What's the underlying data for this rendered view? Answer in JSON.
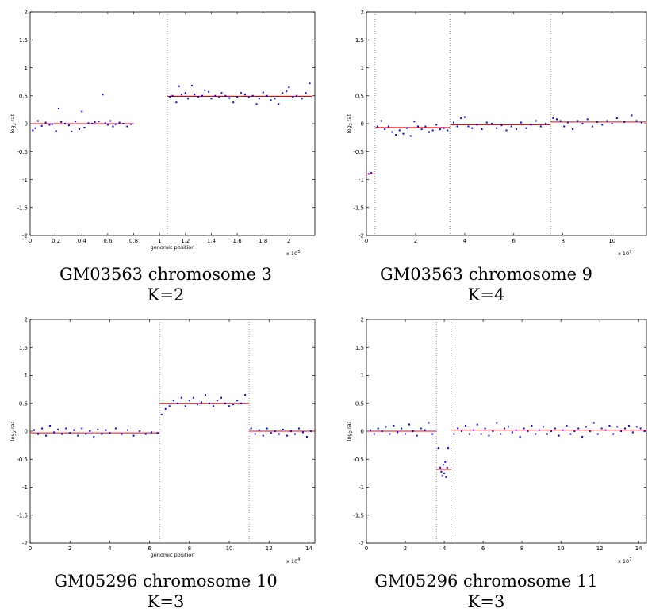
{
  "chart_data": [
    {
      "type": "scatter",
      "caption_title": "GM03563 chromosome 3",
      "caption_k": "K=2",
      "xlabel": "genomic position",
      "ylabel": "log",
      "ylabel_sub": "2",
      "ylabel_suffix": " rat",
      "x_unit_label": "x 10",
      "x_unit_exp": "5",
      "xlim": [
        0,
        2.2
      ],
      "ylim": [
        -2,
        2
      ],
      "xticks": [
        0,
        0.2,
        0.4,
        0.6,
        0.8,
        1,
        1.2,
        1.4,
        1.6,
        1.8,
        2
      ],
      "xtick_labels": [
        "0",
        "0.2",
        "0.4",
        "0.6",
        "0.8",
        "1",
        "1.2",
        "1.4",
        "1.6",
        "1.8",
        "2"
      ],
      "yticks": [
        -2,
        -1.5,
        -1,
        -0.5,
        0,
        0.5,
        1,
        1.5,
        2
      ],
      "ytick_labels": [
        "-2",
        "-1.5",
        "-1",
        "-0.5",
        "0",
        "0.5",
        "1",
        "1.5",
        "2"
      ],
      "breakpoints": [
        1.06
      ],
      "segments": [
        {
          "x": [
            0.01,
            0.8
          ],
          "y": 0.0
        },
        {
          "x": [
            1.06,
            2.18
          ],
          "y": 0.49
        }
      ],
      "points": [
        [
          0.02,
          -0.12
        ],
        [
          0.04,
          -0.08
        ],
        [
          0.06,
          0.05
        ],
        [
          0.09,
          -0.04
        ],
        [
          0.12,
          0.02
        ],
        [
          0.15,
          -0.02
        ],
        [
          0.17,
          -0.01
        ],
        [
          0.2,
          -0.13
        ],
        [
          0.22,
          0.27
        ],
        [
          0.24,
          0.03
        ],
        [
          0.27,
          0.0
        ],
        [
          0.3,
          -0.03
        ],
        [
          0.32,
          -0.14
        ],
        [
          0.35,
          0.04
        ],
        [
          0.38,
          -0.1
        ],
        [
          0.4,
          0.22
        ],
        [
          0.42,
          -0.07
        ],
        [
          0.45,
          0.01
        ],
        [
          0.48,
          0.0
        ],
        [
          0.5,
          0.03
        ],
        [
          0.53,
          0.04
        ],
        [
          0.56,
          0.52
        ],
        [
          0.58,
          0.01
        ],
        [
          0.6,
          -0.02
        ],
        [
          0.62,
          0.05
        ],
        [
          0.64,
          -0.05
        ],
        [
          0.66,
          -0.01
        ],
        [
          0.69,
          0.02
        ],
        [
          0.72,
          0.0
        ],
        [
          0.75,
          -0.05
        ],
        [
          0.78,
          -0.01
        ],
        [
          1.08,
          0.48
        ],
        [
          1.1,
          0.5
        ],
        [
          1.13,
          0.38
        ],
        [
          1.15,
          0.67
        ],
        [
          1.17,
          0.52
        ],
        [
          1.2,
          0.55
        ],
        [
          1.22,
          0.45
        ],
        [
          1.25,
          0.68
        ],
        [
          1.27,
          0.52
        ],
        [
          1.3,
          0.48
        ],
        [
          1.33,
          0.5
        ],
        [
          1.35,
          0.6
        ],
        [
          1.38,
          0.57
        ],
        [
          1.4,
          0.45
        ],
        [
          1.43,
          0.5
        ],
        [
          1.46,
          0.47
        ],
        [
          1.48,
          0.55
        ],
        [
          1.51,
          0.5
        ],
        [
          1.54,
          0.46
        ],
        [
          1.57,
          0.38
        ],
        [
          1.6,
          0.48
        ],
        [
          1.63,
          0.55
        ],
        [
          1.66,
          0.52
        ],
        [
          1.69,
          0.47
        ],
        [
          1.72,
          0.5
        ],
        [
          1.75,
          0.35
        ],
        [
          1.77,
          0.45
        ],
        [
          1.8,
          0.56
        ],
        [
          1.83,
          0.5
        ],
        [
          1.86,
          0.42
        ],
        [
          1.89,
          0.45
        ],
        [
          1.92,
          0.35
        ],
        [
          1.95,
          0.55
        ],
        [
          1.98,
          0.58
        ],
        [
          2.0,
          0.65
        ],
        [
          2.03,
          0.48
        ],
        [
          2.06,
          0.5
        ],
        [
          2.1,
          0.45
        ],
        [
          2.13,
          0.55
        ],
        [
          2.16,
          0.72
        ]
      ]
    },
    {
      "type": "scatter",
      "caption_title": "GM03563 chromosome 9",
      "caption_k": "K=4",
      "xlabel": "",
      "ylabel": "log",
      "ylabel_sub": "2",
      "ylabel_suffix": " rat",
      "x_unit_label": "x 10",
      "x_unit_exp": "7",
      "xlim": [
        0,
        11.4
      ],
      "ylim": [
        -2,
        2
      ],
      "xticks": [
        0,
        2,
        4,
        6,
        8,
        10
      ],
      "xtick_labels": [
        "0",
        "2",
        "4",
        "6",
        "8",
        "10"
      ],
      "yticks": [
        -2,
        -1.5,
        -1,
        -0.5,
        0,
        0.5,
        1,
        1.5,
        2
      ],
      "ytick_labels": [
        "-2",
        "-1.5",
        "-1",
        "-0.5",
        "0",
        "0.5",
        "1",
        "1.5",
        "2"
      ],
      "breakpoints": [
        0.35,
        3.4,
        7.5
      ],
      "segments": [
        {
          "x": [
            0.0,
            0.35
          ],
          "y": -0.9
        },
        {
          "x": [
            0.35,
            3.4
          ],
          "y": -0.07
        },
        {
          "x": [
            3.4,
            7.5
          ],
          "y": -0.02
        },
        {
          "x": [
            7.5,
            11.4
          ],
          "y": 0.03
        }
      ],
      "points": [
        [
          0.1,
          -0.9
        ],
        [
          0.2,
          -0.88
        ],
        [
          0.45,
          -0.05
        ],
        [
          0.6,
          0.05
        ],
        [
          0.75,
          -0.1
        ],
        [
          0.9,
          -0.05
        ],
        [
          1.05,
          -0.15
        ],
        [
          1.2,
          -0.2
        ],
        [
          1.35,
          -0.12
        ],
        [
          1.5,
          -0.18
        ],
        [
          1.65,
          -0.08
        ],
        [
          1.8,
          -0.22
        ],
        [
          1.95,
          0.04
        ],
        [
          2.1,
          -0.05
        ],
        [
          2.25,
          -0.1
        ],
        [
          2.4,
          -0.05
        ],
        [
          2.55,
          -0.15
        ],
        [
          2.7,
          -0.12
        ],
        [
          2.85,
          -0.02
        ],
        [
          3.0,
          -0.1
        ],
        [
          3.15,
          -0.08
        ],
        [
          3.3,
          -0.12
        ],
        [
          3.55,
          0.02
        ],
        [
          3.7,
          -0.05
        ],
        [
          3.85,
          0.1
        ],
        [
          4.0,
          0.12
        ],
        [
          4.15,
          -0.05
        ],
        [
          4.3,
          -0.08
        ],
        [
          4.5,
          -0.02
        ],
        [
          4.7,
          -0.1
        ],
        [
          4.9,
          0.02
        ],
        [
          5.1,
          0.0
        ],
        [
          5.3,
          -0.08
        ],
        [
          5.5,
          -0.03
        ],
        [
          5.7,
          -0.12
        ],
        [
          5.9,
          -0.05
        ],
        [
          6.1,
          -0.1
        ],
        [
          6.3,
          0.02
        ],
        [
          6.5,
          -0.08
        ],
        [
          6.7,
          -0.02
        ],
        [
          6.9,
          0.05
        ],
        [
          7.1,
          -0.05
        ],
        [
          7.3,
          0.0
        ],
        [
          7.6,
          0.1
        ],
        [
          7.75,
          0.08
        ],
        [
          7.9,
          0.05
        ],
        [
          8.05,
          -0.05
        ],
        [
          8.2,
          0.02
        ],
        [
          8.4,
          -0.1
        ],
        [
          8.6,
          0.05
        ],
        [
          8.8,
          0.0
        ],
        [
          9.0,
          0.08
        ],
        [
          9.2,
          -0.05
        ],
        [
          9.4,
          0.03
        ],
        [
          9.6,
          -0.02
        ],
        [
          9.8,
          0.05
        ],
        [
          10.0,
          0.0
        ],
        [
          10.2,
          0.1
        ],
        [
          10.5,
          0.03
        ],
        [
          10.8,
          0.15
        ],
        [
          11.0,
          0.05
        ],
        [
          11.2,
          0.02
        ]
      ]
    },
    {
      "type": "scatter",
      "caption_title": "GM05296 chromosome 10",
      "caption_k": "K=3",
      "xlabel": "genomic position",
      "ylabel": "log",
      "ylabel_sub": "2",
      "ylabel_suffix": " rat",
      "x_unit_label": "x 10",
      "x_unit_exp": "4",
      "xlim": [
        0,
        14.3
      ],
      "ylim": [
        -2,
        2
      ],
      "xticks": [
        0,
        2,
        4,
        6,
        8,
        10,
        12,
        14
      ],
      "xtick_labels": [
        "0",
        "2",
        "4",
        "6",
        "8",
        "10",
        "12",
        "14"
      ],
      "yticks": [
        -2,
        -1.5,
        -1,
        -0.5,
        0,
        0.5,
        1,
        1.5,
        2
      ],
      "ytick_labels": [
        "-2",
        "-1.5",
        "-1",
        "-0.5",
        "0",
        "0.5",
        "1",
        "1.5",
        "2"
      ],
      "breakpoints": [
        6.5,
        11.0
      ],
      "segments": [
        {
          "x": [
            0.0,
            6.5
          ],
          "y": -0.03
        },
        {
          "x": [
            6.5,
            11.0
          ],
          "y": 0.5
        },
        {
          "x": [
            11.0,
            14.3
          ],
          "y": 0.0
        }
      ],
      "points": [
        [
          0.2,
          0.02
        ],
        [
          0.4,
          -0.05
        ],
        [
          0.6,
          0.05
        ],
        [
          0.8,
          -0.08
        ],
        [
          1.0,
          0.1
        ],
        [
          1.2,
          -0.02
        ],
        [
          1.4,
          0.03
        ],
        [
          1.6,
          -0.05
        ],
        [
          1.8,
          0.05
        ],
        [
          2.0,
          -0.03
        ],
        [
          2.2,
          0.02
        ],
        [
          2.4,
          -0.08
        ],
        [
          2.6,
          0.05
        ],
        [
          2.8,
          -0.05
        ],
        [
          3.0,
          0.0
        ],
        [
          3.2,
          -0.1
        ],
        [
          3.4,
          0.03
        ],
        [
          3.6,
          -0.05
        ],
        [
          3.8,
          0.02
        ],
        [
          4.0,
          -0.03
        ],
        [
          4.3,
          0.05
        ],
        [
          4.6,
          -0.05
        ],
        [
          4.9,
          0.02
        ],
        [
          5.2,
          -0.08
        ],
        [
          5.5,
          0.0
        ],
        [
          5.8,
          -0.05
        ],
        [
          6.1,
          -0.02
        ],
        [
          6.4,
          -0.03
        ],
        [
          6.6,
          0.3
        ],
        [
          6.8,
          0.4
        ],
        [
          7.0,
          0.45
        ],
        [
          7.2,
          0.55
        ],
        [
          7.4,
          0.5
        ],
        [
          7.6,
          0.6
        ],
        [
          7.8,
          0.45
        ],
        [
          8.0,
          0.55
        ],
        [
          8.2,
          0.6
        ],
        [
          8.4,
          0.48
        ],
        [
          8.6,
          0.52
        ],
        [
          8.8,
          0.65
        ],
        [
          9.0,
          0.5
        ],
        [
          9.2,
          0.45
        ],
        [
          9.4,
          0.55
        ],
        [
          9.6,
          0.6
        ],
        [
          9.8,
          0.5
        ],
        [
          10.0,
          0.45
        ],
        [
          10.2,
          0.48
        ],
        [
          10.4,
          0.55
        ],
        [
          10.6,
          0.5
        ],
        [
          10.8,
          0.65
        ],
        [
          11.1,
          0.05
        ],
        [
          11.3,
          -0.05
        ],
        [
          11.5,
          0.02
        ],
        [
          11.7,
          -0.08
        ],
        [
          11.9,
          0.05
        ],
        [
          12.1,
          -0.03
        ],
        [
          12.3,
          0.0
        ],
        [
          12.5,
          -0.05
        ],
        [
          12.7,
          0.03
        ],
        [
          12.9,
          -0.08
        ],
        [
          13.1,
          0.0
        ],
        [
          13.3,
          -0.05
        ],
        [
          13.5,
          0.05
        ],
        [
          13.7,
          -0.02
        ],
        [
          13.9,
          -0.1
        ],
        [
          14.1,
          0.0
        ]
      ]
    },
    {
      "type": "scatter",
      "caption_title": "GM05296 chromosome 11",
      "caption_k": "K=3",
      "xlabel": "",
      "ylabel": "log",
      "ylabel_sub": "2",
      "ylabel_suffix": " rat",
      "x_unit_label": "x 10",
      "x_unit_exp": "7",
      "xlim": [
        0,
        14.4
      ],
      "ylim": [
        -2,
        2
      ],
      "xticks": [
        0,
        2,
        4,
        6,
        8,
        10,
        12,
        14
      ],
      "xtick_labels": [
        "0",
        "2",
        "4",
        "6",
        "8",
        "10",
        "12",
        "14"
      ],
      "yticks": [
        -2,
        -1.5,
        -1,
        -0.5,
        0,
        0.5,
        1,
        1.5,
        2
      ],
      "ytick_labels": [
        "-2",
        "-1.5",
        "-1",
        "-0.5",
        "0",
        "0.5",
        "1",
        "1.5",
        "2"
      ],
      "breakpoints": [
        3.6,
        4.35
      ],
      "segments": [
        {
          "x": [
            0.0,
            3.6
          ],
          "y": 0.0
        },
        {
          "x": [
            3.6,
            4.35
          ],
          "y": -0.68
        },
        {
          "x": [
            4.35,
            14.4
          ],
          "y": 0.02
        }
      ],
      "points": [
        [
          0.2,
          0.02
        ],
        [
          0.4,
          -0.05
        ],
        [
          0.6,
          0.05
        ],
        [
          0.8,
          0.0
        ],
        [
          1.0,
          0.08
        ],
        [
          1.2,
          -0.05
        ],
        [
          1.4,
          0.1
        ],
        [
          1.6,
          -0.02
        ],
        [
          1.8,
          0.05
        ],
        [
          2.0,
          -0.05
        ],
        [
          2.2,
          0.12
        ],
        [
          2.4,
          0.0
        ],
        [
          2.6,
          -0.08
        ],
        [
          2.8,
          0.05
        ],
        [
          3.0,
          0.02
        ],
        [
          3.2,
          0.15
        ],
        [
          3.4,
          -0.05
        ],
        [
          3.7,
          -0.3
        ],
        [
          3.8,
          -0.65
        ],
        [
          3.85,
          -0.72
        ],
        [
          3.9,
          -0.8
        ],
        [
          3.95,
          -0.6
        ],
        [
          4.0,
          -0.75
        ],
        [
          4.05,
          -0.55
        ],
        [
          4.1,
          -0.82
        ],
        [
          4.15,
          -0.65
        ],
        [
          4.2,
          -0.3
        ],
        [
          4.5,
          -0.05
        ],
        [
          4.7,
          0.05
        ],
        [
          4.9,
          0.0
        ],
        [
          5.1,
          0.1
        ],
        [
          5.3,
          -0.05
        ],
        [
          5.5,
          0.02
        ],
        [
          5.7,
          0.12
        ],
        [
          5.9,
          -0.05
        ],
        [
          6.1,
          0.05
        ],
        [
          6.3,
          -0.08
        ],
        [
          6.5,
          0.0
        ],
        [
          6.7,
          0.15
        ],
        [
          6.9,
          -0.05
        ],
        [
          7.1,
          0.05
        ],
        [
          7.3,
          0.08
        ],
        [
          7.5,
          -0.02
        ],
        [
          7.7,
          0.02
        ],
        [
          7.9,
          -0.1
        ],
        [
          8.1,
          0.05
        ],
        [
          8.3,
          0.0
        ],
        [
          8.5,
          0.1
        ],
        [
          8.7,
          -0.05
        ],
        [
          8.9,
          0.02
        ],
        [
          9.1,
          0.08
        ],
        [
          9.3,
          -0.05
        ],
        [
          9.5,
          0.0
        ],
        [
          9.7,
          0.05
        ],
        [
          9.9,
          -0.08
        ],
        [
          10.1,
          0.02
        ],
        [
          10.3,
          0.1
        ],
        [
          10.5,
          -0.05
        ],
        [
          10.7,
          0.0
        ],
        [
          10.9,
          0.05
        ],
        [
          11.1,
          -0.1
        ],
        [
          11.3,
          0.08
        ],
        [
          11.5,
          0.0
        ],
        [
          11.7,
          0.15
        ],
        [
          11.9,
          -0.05
        ],
        [
          12.1,
          0.05
        ],
        [
          12.3,
          0.02
        ],
        [
          12.5,
          0.1
        ],
        [
          12.7,
          -0.05
        ],
        [
          12.9,
          0.08
        ],
        [
          13.1,
          0.0
        ],
        [
          13.3,
          0.05
        ],
        [
          13.5,
          0.1
        ],
        [
          13.7,
          -0.02
        ],
        [
          13.9,
          0.08
        ],
        [
          14.1,
          0.05
        ],
        [
          14.3,
          0.0
        ]
      ]
    }
  ]
}
